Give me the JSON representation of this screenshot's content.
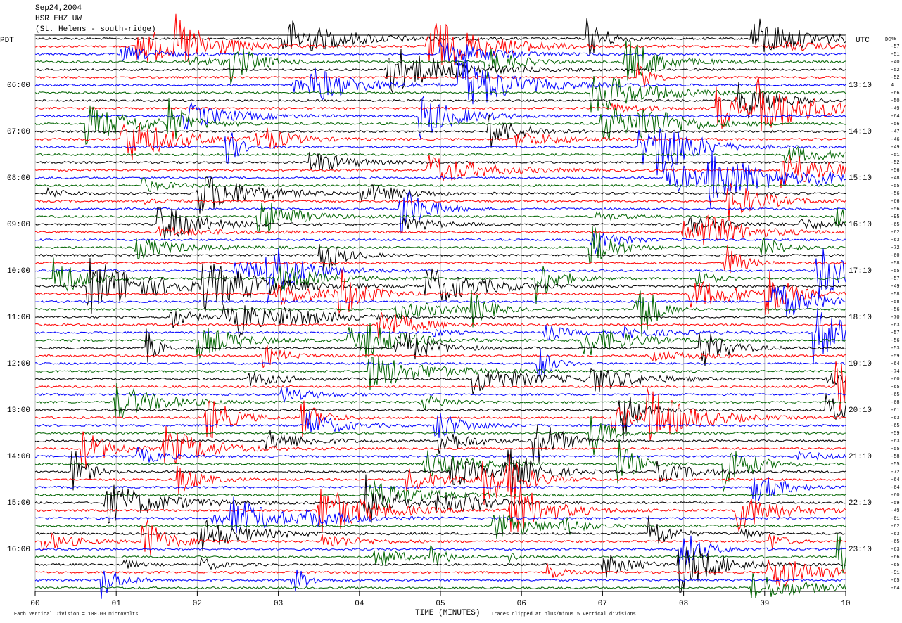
{
  "chart_data": {
    "type": "helicorder",
    "title": "Sep24,2004",
    "subtitle": "HSR EHZ UW",
    "station_name": "(St. Helens - south-ridge)",
    "left_axis_label": "PDT",
    "right_axis_label": "UTC",
    "dc_label": "DC",
    "x_label": "TIME (MINUTES)",
    "scale_note": "Each Vertical Division =  100.00 microvolts",
    "clip_note": "Traces clipped at plus/minus 5 vertical divisions",
    "xlim": [
      0,
      10
    ],
    "xticks": [
      {
        "value": 0,
        "label": "00"
      },
      {
        "value": 1,
        "label": "01"
      },
      {
        "value": 2,
        "label": "02"
      },
      {
        "value": 3,
        "label": "03"
      },
      {
        "value": 4,
        "label": "04"
      },
      {
        "value": 5,
        "label": "05"
      },
      {
        "value": 6,
        "label": "06"
      },
      {
        "value": 7,
        "label": "07"
      },
      {
        "value": 8,
        "label": "08"
      },
      {
        "value": 9,
        "label": "09"
      },
      {
        "value": 10,
        "label": "10"
      }
    ],
    "grid": true,
    "left_labels": [
      "06:00",
      "07:00",
      "08:00",
      "09:00",
      "10:00",
      "11:00",
      "12:00",
      "13:00",
      "14:00",
      "15:00",
      "16:00"
    ],
    "right_labels": [
      "13:10",
      "14:10",
      "15:10",
      "16:10",
      "17:10",
      "18:10",
      "19:10",
      "20:10",
      "21:10",
      "22:10",
      "23:10"
    ],
    "trace_colors": [
      "#000000",
      "#ff0000",
      "#0000ff",
      "#006400"
    ],
    "dc_values": [
      48,
      -57,
      -51,
      -40,
      -52,
      -52,
      4,
      -66,
      -50,
      -49,
      -64,
      -56,
      -47,
      -46,
      -49,
      -51,
      -52,
      -56,
      -48,
      -55,
      -56,
      -66,
      -56,
      -95,
      -65,
      -62,
      -63,
      -72,
      -60,
      -58,
      -55,
      -57,
      -49,
      -58,
      -58,
      -56,
      -70,
      -63,
      -57,
      -56,
      -53,
      -59,
      -64,
      -74,
      -60,
      -65,
      -65,
      -68,
      -61,
      -63,
      -65,
      -59,
      -63,
      -55,
      -58,
      -55,
      -72,
      -64,
      -64,
      -60,
      -59,
      -49,
      -61,
      -62,
      -63,
      -65,
      -63,
      -66,
      -65,
      -91,
      -65,
      -64
    ]
  }
}
